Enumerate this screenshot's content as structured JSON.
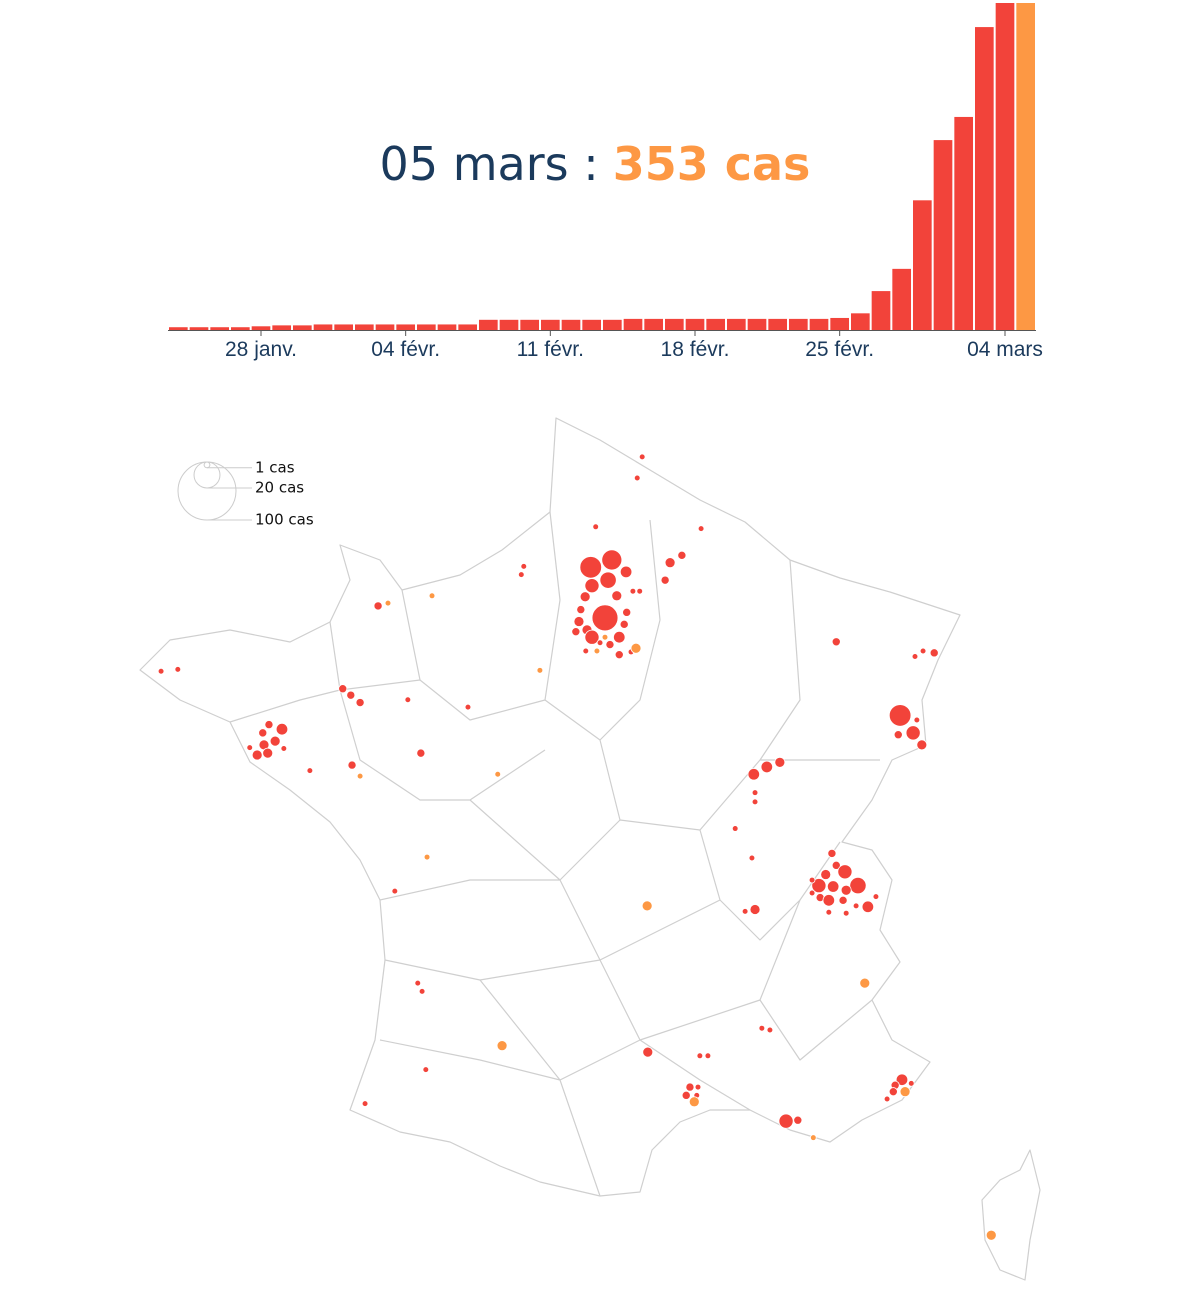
{
  "chart_data": {
    "type": "bar",
    "title": "05 mars :",
    "title_value": "353 cas",
    "categories": [
      null,
      null,
      null,
      null,
      "28 janv.",
      null,
      null,
      null,
      null,
      null,
      null,
      "04 févr.",
      null,
      null,
      null,
      null,
      null,
      null,
      "11 févr.",
      null,
      null,
      null,
      null,
      null,
      null,
      "18 févr.",
      null,
      null,
      null,
      null,
      null,
      null,
      "25 févr.",
      null,
      null,
      null,
      null,
      null,
      null,
      null,
      "04 mars",
      null
    ],
    "values": [
      3,
      3,
      3,
      3,
      4,
      5,
      5,
      6,
      6,
      6,
      6,
      6,
      6,
      6,
      6,
      11,
      11,
      11,
      11,
      11,
      11,
      11,
      12,
      12,
      12,
      12,
      12,
      12,
      12,
      12,
      12,
      12,
      13,
      18,
      42,
      66,
      140,
      205,
      230,
      327,
      353,
      353
    ],
    "color": "#f2433a",
    "last_color": "#fd9844"
  },
  "map": {
    "type": "bubble-map",
    "size_legend": [
      {
        "value": 1,
        "label": "1 cas"
      },
      {
        "value": 20,
        "label": "20 cas"
      },
      {
        "value": 100,
        "label": "100 cas"
      }
    ],
    "series": [
      {
        "color": "#f2433a",
        "points": [
          [
            2.95,
            50.47,
            1
          ],
          [
            2.87,
            50.24,
            1
          ],
          [
            2.2,
            49.71,
            1
          ],
          [
            3.9,
            49.69,
            1
          ],
          [
            3.59,
            49.4,
            2
          ],
          [
            3.4,
            49.32,
            3
          ],
          [
            3.32,
            49.13,
            2
          ],
          [
            2.12,
            49.27,
            14
          ],
          [
            2.46,
            49.35,
            12
          ],
          [
            2.4,
            49.13,
            8
          ],
          [
            2.69,
            49.22,
            4
          ],
          [
            2.14,
            49.07,
            6
          ],
          [
            2.54,
            48.96,
            3
          ],
          [
            2.8,
            49.01,
            1
          ],
          [
            2.91,
            49.01,
            1
          ],
          [
            2.03,
            48.95,
            3
          ],
          [
            2.35,
            48.72,
            20
          ],
          [
            1.96,
            48.81,
            2
          ],
          [
            2.7,
            48.78,
            2
          ],
          [
            1.93,
            48.68,
            3
          ],
          [
            2.06,
            48.59,
            3
          ],
          [
            2.14,
            48.51,
            6
          ],
          [
            2.58,
            48.51,
            4
          ],
          [
            2.66,
            48.65,
            2
          ],
          [
            1.88,
            48.57,
            2
          ],
          [
            2.43,
            48.43,
            2
          ],
          [
            2.27,
            48.45,
            1
          ],
          [
            2.04,
            48.36,
            1
          ],
          [
            2.58,
            48.32,
            2
          ],
          [
            2.77,
            48.35,
            1
          ],
          [
            1.04,
            49.28,
            1
          ],
          [
            1.0,
            49.19,
            1
          ],
          [
            -1.31,
            48.85,
            2
          ],
          [
            -4.81,
            48.14,
            1
          ],
          [
            -4.54,
            48.16,
            1
          ],
          [
            -1.88,
            47.95,
            2
          ],
          [
            -1.75,
            47.88,
            2
          ],
          [
            -1.6,
            47.8,
            2
          ],
          [
            -0.83,
            47.83,
            1
          ],
          [
            0.14,
            47.75,
            1
          ],
          [
            -2.86,
            47.51,
            4
          ],
          [
            -3.07,
            47.56,
            2
          ],
          [
            -3.17,
            47.47,
            2
          ],
          [
            -2.97,
            47.38,
            3
          ],
          [
            -3.15,
            47.34,
            3
          ],
          [
            -3.26,
            47.23,
            3
          ],
          [
            -3.09,
            47.25,
            3
          ],
          [
            -2.83,
            47.3,
            1
          ],
          [
            -3.38,
            47.31,
            1
          ],
          [
            -2.41,
            47.06,
            1
          ],
          [
            -1.73,
            47.12,
            2
          ],
          [
            -0.62,
            47.25,
            2
          ],
          [
            6.08,
            48.46,
            2
          ],
          [
            7.35,
            48.3,
            1
          ],
          [
            7.48,
            48.36,
            1
          ],
          [
            7.66,
            48.34,
            2
          ],
          [
            7.11,
            47.66,
            14
          ],
          [
            7.32,
            47.47,
            6
          ],
          [
            7.08,
            47.45,
            2
          ],
          [
            7.46,
            47.34,
            3
          ],
          [
            7.38,
            47.61,
            1
          ],
          [
            4.75,
            47.02,
            4
          ],
          [
            4.96,
            47.1,
            4
          ],
          [
            5.17,
            47.15,
            3
          ],
          [
            4.77,
            46.82,
            1
          ],
          [
            4.77,
            46.72,
            1
          ],
          [
            4.45,
            46.43,
            1
          ],
          [
            4.72,
            46.11,
            1
          ],
          [
            6.01,
            46.16,
            2
          ],
          [
            6.08,
            46.03,
            2
          ],
          [
            6.22,
            45.96,
            6
          ],
          [
            5.91,
            45.93,
            3
          ],
          [
            5.8,
            45.81,
            6
          ],
          [
            6.03,
            45.8,
            4
          ],
          [
            6.43,
            45.81,
            8
          ],
          [
            6.24,
            45.76,
            3
          ],
          [
            5.69,
            45.87,
            1
          ],
          [
            5.69,
            45.73,
            1
          ],
          [
            5.82,
            45.68,
            2
          ],
          [
            5.96,
            45.65,
            4
          ],
          [
            6.19,
            45.65,
            2
          ],
          [
            6.59,
            45.58,
            4
          ],
          [
            6.72,
            45.69,
            1
          ],
          [
            6.24,
            45.51,
            1
          ],
          [
            5.96,
            45.52,
            1
          ],
          [
            6.4,
            45.59,
            1
          ],
          [
            4.77,
            45.55,
            3
          ],
          [
            4.61,
            45.53,
            1
          ],
          [
            -1.04,
            45.75,
            1
          ],
          [
            -0.67,
            44.75,
            1
          ],
          [
            -0.6,
            44.66,
            1
          ],
          [
            4.88,
            44.26,
            1
          ],
          [
            5.01,
            44.24,
            1
          ],
          [
            3.04,
            44.0,
            3
          ],
          [
            3.88,
            43.96,
            1
          ],
          [
            4.01,
            43.96,
            1
          ],
          [
            -0.54,
            43.81,
            1
          ],
          [
            3.72,
            43.62,
            2
          ],
          [
            3.85,
            43.62,
            1
          ],
          [
            3.66,
            43.53,
            2
          ],
          [
            3.83,
            43.53,
            1
          ],
          [
            7.14,
            43.7,
            4
          ],
          [
            7.03,
            43.64,
            2
          ],
          [
            7.29,
            43.66,
            1
          ],
          [
            7.0,
            43.57,
            2
          ],
          [
            6.9,
            43.49,
            1
          ],
          [
            5.27,
            43.25,
            6
          ],
          [
            5.46,
            43.26,
            2
          ],
          [
            -1.52,
            43.44,
            1
          ]
        ]
      },
      {
        "color": "#fd9844",
        "points": [
          [
            2.22,
            48.36,
            1
          ],
          [
            2.35,
            48.51,
            1
          ],
          [
            2.85,
            48.39,
            3
          ],
          [
            -1.15,
            48.88,
            1
          ],
          [
            -0.44,
            48.96,
            1
          ],
          [
            1.3,
            48.15,
            1
          ],
          [
            -1.6,
            47.0,
            1
          ],
          [
            0.62,
            47.02,
            1
          ],
          [
            -0.52,
            46.12,
            1
          ],
          [
            3.03,
            45.59,
            3
          ],
          [
            6.54,
            44.75,
            3
          ],
          [
            0.69,
            44.07,
            3
          ],
          [
            3.79,
            43.46,
            3
          ],
          [
            7.19,
            43.57,
            3
          ],
          [
            5.71,
            43.07,
            1
          ],
          [
            8.58,
            42.01,
            3
          ]
        ]
      }
    ]
  }
}
